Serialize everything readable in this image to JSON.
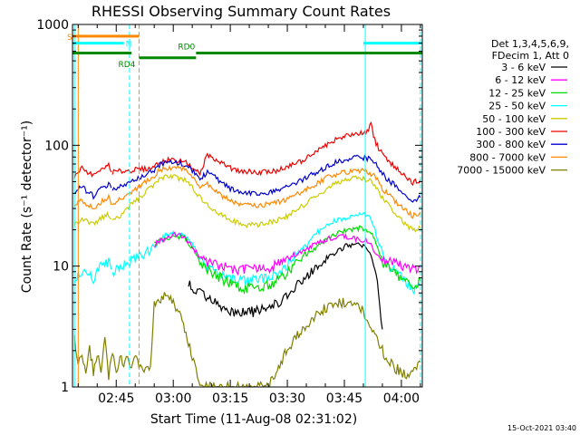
{
  "chart_data": {
    "type": "line",
    "title": "RHESSI Observing Summary Count Rates",
    "xlabel": "Start Time (11-Aug-08 02:31:02)",
    "ylabel": "Count Rate (s⁻¹ detector⁻¹)",
    "yscale": "log",
    "ylim": [
      1,
      1000
    ],
    "xlim_minutes": [
      2.5,
      94.5
    ],
    "x_ticks": [
      {
        "label": "02:45",
        "min": 14
      },
      {
        "label": "03:00",
        "min": 29
      },
      {
        "label": "03:15",
        "min": 44
      },
      {
        "label": "03:30",
        "min": 59
      },
      {
        "label": "03:45",
        "min": 74
      },
      {
        "label": "04:00",
        "min": 89
      }
    ],
    "y_ticks": [
      {
        "label": "1",
        "value": 1
      },
      {
        "label": "10",
        "value": 10
      },
      {
        "label": "100",
        "value": 100
      },
      {
        "label": "1000",
        "value": 1000
      }
    ],
    "legend": {
      "placement": "right",
      "header": [
        "Det 1,3,4,5,6,9,",
        "FDecim 1, Att 0"
      ],
      "entries": [
        {
          "label": "3 - 6 keV",
          "color": "#000000"
        },
        {
          "label": "6 - 12 keV",
          "color": "#ff00ff"
        },
        {
          "label": "12 - 25 keV",
          "color": "#00dd00"
        },
        {
          "label": "25 - 50 keV",
          "color": "#00ffff"
        },
        {
          "label": "50 - 100 keV",
          "color": "#cccc00"
        },
        {
          "label": "100 - 300 keV",
          "color": "#ee0000"
        },
        {
          "label": "300 - 800 keV",
          "color": "#0000cc"
        },
        {
          "label": "800 - 7000 keV",
          "color": "#ff8800"
        },
        {
          "label": "7000 - 15000 keV",
          "color": "#808000"
        }
      ]
    },
    "flag_bars": [
      {
        "label": "S",
        "color": "#ff8800",
        "level": 800,
        "x": [
          2.5,
          20
        ]
      },
      {
        "label": "N",
        "color": "#00ffff",
        "level": 700,
        "x": [
          2.5,
          16
        ]
      },
      {
        "label": "",
        "color": "#00ffff",
        "level": 700,
        "x": [
          79,
          94.5
        ]
      },
      {
        "label": "",
        "color": "#008800",
        "level": 580,
        "x": [
          2.5,
          18
        ]
      },
      {
        "label": "RD4",
        "color": "#008800",
        "level": 530,
        "x": [
          20,
          35
        ]
      },
      {
        "label": "RD0",
        "color": "#008800",
        "level": 580,
        "x": [
          35,
          94.5
        ]
      }
    ],
    "vertical_markers": [
      {
        "x": 3,
        "color": "#00ffff",
        "style": "solid"
      },
      {
        "x": 4,
        "color": "#ff8800",
        "style": "solid"
      },
      {
        "x": 17.5,
        "color": "#00ffff",
        "style": "dashed"
      },
      {
        "x": 20,
        "color": "#ff8800",
        "style": "dashed"
      },
      {
        "x": 79.5,
        "color": "#00ffff",
        "style": "solid"
      },
      {
        "x": 94,
        "color": "#00ffff",
        "style": "dashed"
      }
    ],
    "series": [
      {
        "name": "100 - 300 keV",
        "color": "#ee0000",
        "x": [
          3,
          5,
          8,
          9,
          10,
          12,
          13,
          24,
          25,
          27,
          29,
          32,
          34,
          36,
          38,
          40,
          42,
          44,
          46,
          48,
          50,
          52,
          54,
          56,
          58,
          60,
          62,
          64,
          66,
          68,
          70,
          72,
          74,
          76,
          78,
          80,
          81,
          82,
          83,
          84,
          86,
          88,
          90,
          92,
          94
        ],
        "y": [
          55,
          65,
          56,
          58,
          65,
          68,
          60,
          65,
          72,
          76,
          75,
          73,
          65,
          58,
          85,
          75,
          70,
          65,
          62,
          61,
          60,
          60,
          61,
          62,
          64,
          68,
          72,
          78,
          86,
          95,
          104,
          112,
          118,
          122,
          124,
          132,
          150,
          110,
          95,
          85,
          72,
          64,
          56,
          49,
          52
        ]
      },
      {
        "name": "300 - 800 keV",
        "color": "#0000cc",
        "x": [
          3,
          5,
          8,
          9,
          10,
          12,
          13,
          24,
          25,
          27,
          29,
          32,
          34,
          36,
          38,
          40,
          42,
          44,
          46,
          48,
          50,
          52,
          54,
          56,
          58,
          60,
          62,
          64,
          66,
          68,
          70,
          72,
          74,
          76,
          78,
          80,
          81,
          82,
          83,
          84,
          86,
          88,
          90,
          92,
          94
        ],
        "y": [
          42,
          45,
          38,
          40,
          44,
          48,
          42,
          62,
          68,
          72,
          73,
          70,
          62,
          52,
          60,
          55,
          48,
          44,
          41,
          40,
          40,
          40,
          41,
          42,
          44,
          47,
          50,
          54,
          58,
          63,
          69,
          73,
          76,
          78,
          80,
          78,
          76,
          72,
          66,
          58,
          50,
          45,
          38,
          35,
          37
        ]
      },
      {
        "name": "800 - 7000 keV",
        "color": "#ff8800",
        "x": [
          3,
          5,
          8,
          9,
          10,
          12,
          13,
          24,
          25,
          27,
          29,
          32,
          34,
          36,
          38,
          40,
          42,
          44,
          46,
          48,
          50,
          52,
          54,
          56,
          58,
          60,
          62,
          64,
          66,
          68,
          70,
          72,
          74,
          76,
          78,
          80,
          81,
          82,
          83,
          84,
          86,
          88,
          90,
          92,
          94
        ],
        "y": [
          32,
          35,
          30,
          31,
          34,
          37,
          32,
          56,
          61,
          65,
          66,
          63,
          56,
          46,
          48,
          43,
          38,
          35,
          33,
          32,
          32,
          32,
          33,
          34,
          35,
          37,
          40,
          43,
          47,
          51,
          55,
          58,
          60,
          61,
          62,
          60,
          58,
          55,
          50,
          44,
          38,
          33,
          29,
          26,
          28
        ]
      },
      {
        "name": "50 - 100 keV",
        "color": "#cccc00",
        "x": [
          3,
          5,
          8,
          9,
          10,
          12,
          13,
          24,
          25,
          27,
          29,
          32,
          34,
          36,
          38,
          40,
          42,
          44,
          46,
          48,
          50,
          52,
          54,
          56,
          58,
          60,
          62,
          64,
          66,
          68,
          70,
          72,
          74,
          76,
          78,
          80,
          81,
          82,
          83,
          84,
          86,
          88,
          90,
          92,
          94
        ],
        "y": [
          22,
          25,
          22,
          23,
          25,
          27,
          23,
          48,
          52,
          55,
          55,
          52,
          45,
          37,
          32,
          29,
          26,
          24,
          23,
          22,
          22,
          22,
          23,
          24,
          25,
          27,
          30,
          33,
          37,
          41,
          45,
          49,
          52,
          53,
          54,
          52,
          50,
          47,
          42,
          37,
          31,
          26,
          22,
          20,
          21
        ]
      },
      {
        "name": "25 - 50 keV",
        "color": "#00ffff",
        "x": [
          3,
          5,
          8,
          9,
          10,
          12,
          13,
          24,
          25,
          27,
          29,
          32,
          34,
          36,
          38,
          40,
          42,
          44,
          46,
          48,
          50,
          52,
          54,
          56,
          58,
          60,
          62,
          64,
          66,
          68,
          70,
          72,
          74,
          76,
          78,
          80,
          81,
          82,
          83,
          84,
          86,
          88,
          90,
          92,
          94
        ],
        "y": [
          8,
          9,
          8,
          9,
          10,
          11,
          9,
          14,
          16,
          18,
          19,
          18,
          15,
          12,
          10,
          9,
          8.5,
          8,
          7.8,
          7.7,
          7.7,
          7.8,
          8,
          8.5,
          9.5,
          11,
          13,
          15,
          18,
          20,
          22,
          24,
          25,
          26,
          27,
          26,
          24,
          20,
          16,
          13,
          10,
          8.5,
          7.5,
          6.5,
          7
        ]
      },
      {
        "name": "12 - 25 keV",
        "color": "#00dd00",
        "x": [
          24,
          25,
          27,
          29,
          32,
          34,
          36,
          38,
          40,
          42,
          44,
          46,
          48,
          50,
          52,
          54,
          56,
          58,
          60,
          62,
          64,
          66,
          68,
          70,
          72,
          74,
          76,
          78,
          80,
          81,
          82,
          83,
          84,
          86,
          88,
          90,
          92,
          94
        ],
        "y": [
          15,
          16,
          17,
          18,
          17,
          14,
          11,
          9.5,
          8.5,
          7.8,
          7.2,
          6.8,
          6.6,
          6.6,
          6.7,
          7,
          7.5,
          8.3,
          9.5,
          11,
          12.5,
          14,
          15.5,
          17,
          18.5,
          19.5,
          20,
          20.5,
          20,
          19,
          16,
          13,
          11,
          9.5,
          8.5,
          7.5,
          7,
          7.5
        ]
      },
      {
        "name": "6 - 12 keV",
        "color": "#ff00ff",
        "x": [
          24,
          25,
          27,
          29,
          32,
          34,
          36,
          38,
          40,
          42,
          44,
          46,
          48,
          50,
          52,
          54,
          56,
          58,
          60,
          62,
          64,
          66,
          68,
          70,
          72,
          74,
          76,
          78,
          80,
          81,
          82,
          83,
          84,
          86,
          88,
          90,
          92,
          94
        ],
        "y": [
          15,
          16,
          17,
          18.5,
          17.5,
          14.5,
          12,
          11,
          10.5,
          10,
          9.7,
          9.5,
          9.3,
          9.3,
          9.4,
          9.7,
          10.2,
          11,
          12,
          13,
          14,
          15,
          16,
          17,
          17.5,
          17.5,
          17,
          16.5,
          16,
          15,
          13,
          12,
          11.5,
          11,
          10.5,
          10,
          9.5,
          10
        ]
      },
      {
        "name": "3 - 6 keV",
        "color": "#000000",
        "x": [
          33,
          35,
          36,
          38,
          40,
          42,
          44,
          46,
          48,
          50,
          52,
          54,
          56,
          58,
          60,
          62,
          64,
          66,
          68,
          70,
          72,
          74,
          76,
          78,
          80,
          81,
          82,
          83,
          84
        ],
        "y": [
          7,
          6.5,
          6.2,
          5.6,
          5,
          4.6,
          4.3,
          4.2,
          4.2,
          4.2,
          4.3,
          4.5,
          4.9,
          5.5,
          6.3,
          7.3,
          8.3,
          9.5,
          10.8,
          12,
          13.2,
          14.5,
          15,
          14.8,
          14,
          12,
          9,
          6,
          3
        ]
      },
      {
        "name": "7000 - 15000 keV",
        "color": "#808000",
        "x": [
          3,
          4,
          5,
          6,
          7,
          8,
          9,
          10,
          11,
          12,
          13,
          14,
          15,
          16,
          17,
          18,
          19,
          20,
          21,
          22,
          23,
          24,
          25,
          26,
          27,
          28,
          29,
          30,
          31,
          32,
          33,
          34,
          35,
          36,
          37,
          38,
          39,
          40,
          41,
          42,
          43,
          44,
          46,
          48,
          50,
          52,
          54,
          56,
          58,
          60,
          62,
          64,
          66,
          68,
          70,
          72,
          74,
          76,
          78,
          80,
          82,
          84,
          86,
          88,
          90,
          92,
          94
        ],
        "y": [
          2.5,
          1.5,
          2,
          1.2,
          2.2,
          1.3,
          1.8,
          1.4,
          2.4,
          1.2,
          2,
          1.3,
          1.9,
          1.5,
          1.7,
          1.4,
          1.8,
          1.5,
          1.4,
          1.6,
          1.5,
          4.8,
          5.2,
          5.6,
          5.8,
          5.4,
          5,
          4.5,
          3.8,
          3.1,
          2.4,
          1.8,
          1.4,
          1.1,
          1,
          1,
          1,
          1,
          1,
          1,
          1,
          1,
          1,
          1,
          1,
          1,
          1,
          1.3,
          1.8,
          2.3,
          2.8,
          3.3,
          3.8,
          4.3,
          4.7,
          5,
          5,
          4.9,
          4.6,
          3.8,
          2.6,
          2,
          1.6,
          1.4,
          1.3,
          1.3,
          1.6
        ]
      }
    ]
  },
  "footer": {
    "timestamp": "15-Oct-2021 03:40"
  }
}
